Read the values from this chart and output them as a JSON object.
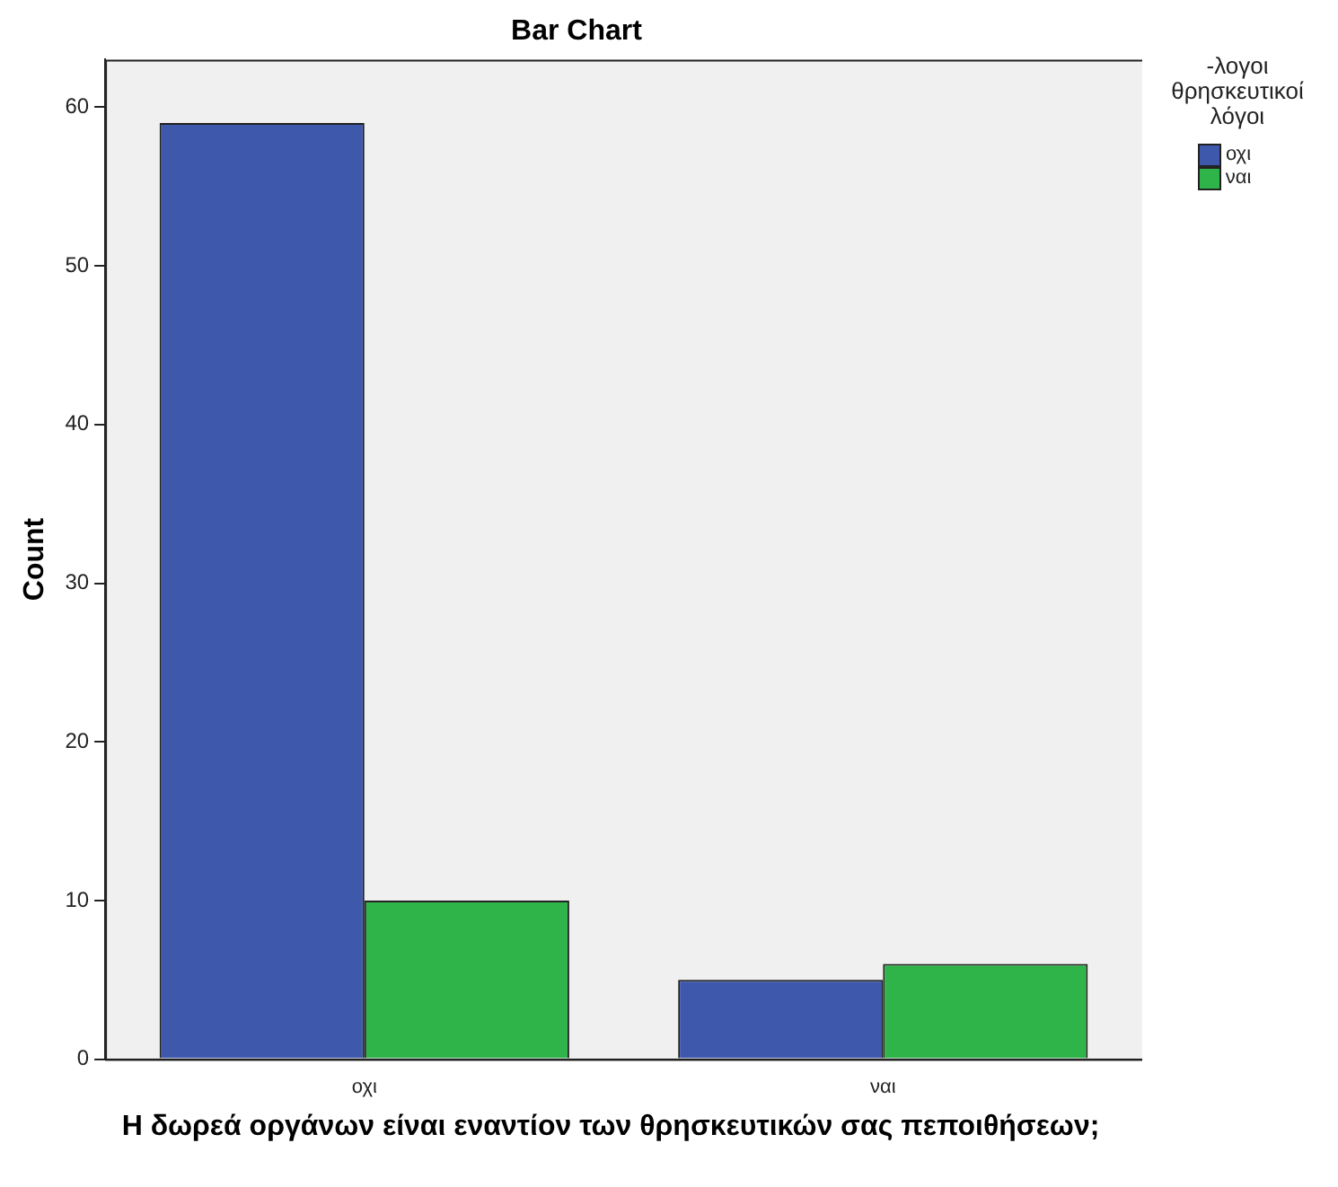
{
  "chart_data": {
    "type": "bar",
    "title": "Bar Chart",
    "xlabel": "Η δωρεά οργάνων είναι εναντίον των θρησκευτικών σας πεποιθήσεων;",
    "ylabel": "Count",
    "legend_title": "-λογοι θρησκευτικοί λόγοι",
    "categories": [
      "οχι",
      "ναι"
    ],
    "series": [
      {
        "name": "οχι",
        "color": "#3e58ac",
        "values": [
          59,
          5
        ]
      },
      {
        "name": "ναι",
        "color": "#2fb44a",
        "values": [
          10,
          6
        ]
      }
    ],
    "ylim": [
      0,
      63
    ],
    "yticks": [
      0,
      10,
      20,
      30,
      40,
      50,
      60
    ],
    "grid": false,
    "legend": "right"
  }
}
